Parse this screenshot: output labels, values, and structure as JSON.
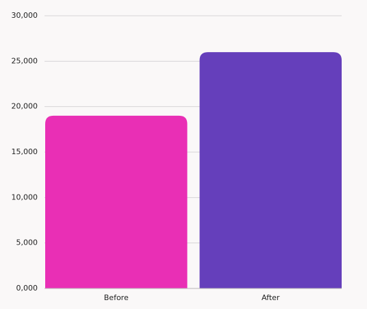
{
  "chart_data": {
    "type": "bar",
    "categories": [
      "Before",
      "After"
    ],
    "values": [
      19000,
      26000
    ],
    "colors": [
      "#e92fb5",
      "#653fbb"
    ],
    "ylim": [
      0,
      30000
    ],
    "yticks": [
      {
        "value": 0,
        "label": "0,000"
      },
      {
        "value": 5000,
        "label": "5,000"
      },
      {
        "value": 10000,
        "label": "10,000"
      },
      {
        "value": 15000,
        "label": "15,000"
      },
      {
        "value": 20000,
        "label": "20,000"
      },
      {
        "value": 25000,
        "label": "25,000"
      },
      {
        "value": 30000,
        "label": "30,000"
      }
    ],
    "grid": true
  }
}
